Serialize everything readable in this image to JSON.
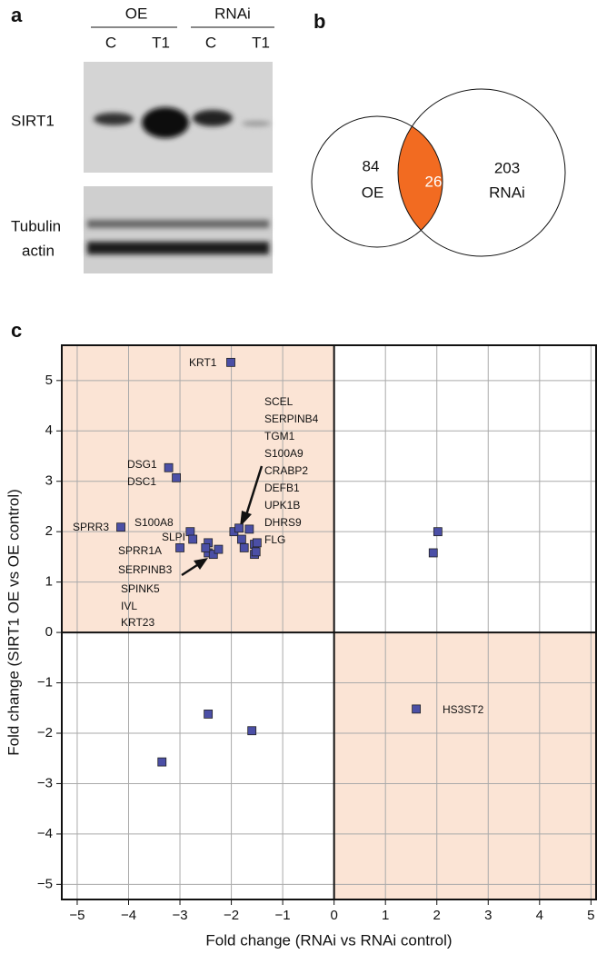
{
  "panel_a": {
    "label": "a",
    "groups": [
      "OE",
      "RNAi"
    ],
    "lanes": [
      "C",
      "T1",
      "C",
      "T1"
    ],
    "rows": [
      "SIRT1",
      "Tubulin",
      "actin"
    ]
  },
  "panel_b": {
    "label": "b",
    "left": {
      "count": 84,
      "name": "OE"
    },
    "overlap": 26,
    "right": {
      "count": 203,
      "name": "RNAi"
    }
  },
  "chart_data": {
    "type": "scatter",
    "label": "c",
    "x_label": "Fold change (RNAi vs RNAi control)",
    "y_label": "Fold change (SIRT1 OE vs OE control)",
    "x": [
      -2.01,
      -3.22,
      -3.07,
      -4.15,
      -2.8,
      -2.75,
      -3.0,
      -2.45,
      -2.45,
      -2.35,
      -2.25,
      -2.5,
      -1.95,
      -1.85,
      -1.65,
      -1.8,
      -1.75,
      -1.55,
      -1.5,
      -1.55,
      -1.52,
      2.02,
      1.93,
      1.6,
      -3.35,
      -2.45,
      -1.6
    ],
    "values": [
      5.36,
      3.27,
      3.07,
      2.09,
      2.0,
      1.85,
      1.68,
      1.78,
      1.58,
      1.55,
      1.65,
      1.68,
      2.0,
      2.07,
      2.05,
      1.85,
      1.68,
      1.75,
      1.78,
      1.55,
      1.6,
      2.0,
      1.58,
      -1.52,
      -2.57,
      -1.62,
      -1.95
    ],
    "color": "#4b4fa6",
    "shade_color": "#fbe4d5",
    "annotations": [
      "KRT1",
      "SCEL",
      "SERPINB4",
      "TGM1",
      "S100A9",
      "CRABP2",
      "DEFB1",
      "UPK1B",
      "DHRS9",
      "FLG",
      "DSG1",
      "DSC1",
      "SPRR3",
      "S100A8",
      "SLPI",
      "SPRR1A",
      "SERPINB3",
      "SPINK5",
      "IVL",
      "KRT23",
      "HS3ST2"
    ],
    "xlim": [
      -5.3,
      5.1
    ],
    "ylim": [
      -5.3,
      5.7
    ],
    "xticks": [
      {
        "value": -5,
        "label": "−5"
      },
      {
        "value": -4,
        "label": "−4"
      },
      {
        "value": -3,
        "label": "−3"
      },
      {
        "value": -2,
        "label": "−2"
      },
      {
        "value": -1,
        "label": "−1"
      },
      0,
      1,
      2,
      3,
      4,
      5
    ],
    "yticks": [
      {
        "value": -5,
        "label": "−5"
      },
      {
        "value": -4,
        "label": "−4"
      },
      {
        "value": -3,
        "label": "−3"
      },
      {
        "value": -2,
        "label": "−2"
      },
      {
        "value": -1,
        "label": "−1"
      },
      0,
      1,
      2,
      3,
      4,
      5
    ],
    "grid": true
  }
}
